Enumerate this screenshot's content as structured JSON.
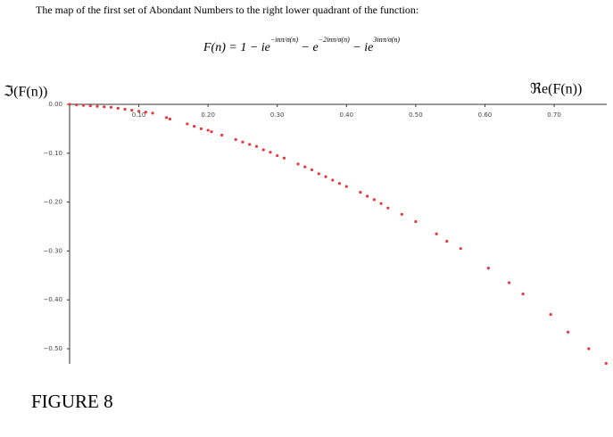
{
  "chart_data": {
    "type": "scatter",
    "title": "The map of the first set of Abondant Numbers to the right lower quadrant of the function:",
    "formula": {
      "lhs": "F(n) = 1 − ie",
      "exp1": "−inπ/σ(n)",
      "mid1": " − e",
      "exp2": "−2inπ/σ(n)",
      "mid2": " − ie",
      "exp3": "3inπ/σ(n)"
    },
    "y_label": "ℑ(F(n))",
    "x_label": "ℜe(F(n))",
    "caption": "FIGURE 8",
    "color": "#e8383d",
    "xlim": [
      0,
      0.776
    ],
    "ylim": [
      -0.531,
      0
    ],
    "xticks": [
      {
        "value": 0.1,
        "label": "0.10"
      },
      {
        "value": 0.2,
        "label": "0.20"
      },
      {
        "value": 0.3,
        "label": "0.30"
      },
      {
        "value": 0.4,
        "label": "0.40"
      },
      {
        "value": 0.5,
        "label": "0.50"
      },
      {
        "value": 0.6,
        "label": "0.60"
      },
      {
        "value": 0.7,
        "label": "0.70"
      }
    ],
    "yticks": [
      {
        "value": 0,
        "label": "0.00"
      },
      {
        "value": -0.1,
        "label": "−0.10"
      },
      {
        "value": -0.2,
        "label": "−0.20"
      },
      {
        "value": -0.3,
        "label": "−0.30"
      },
      {
        "value": -0.4,
        "label": "−0.40"
      },
      {
        "value": -0.5,
        "label": "−0.50"
      }
    ],
    "x": [
      0,
      0.01,
      0.02,
      0.03,
      0.04,
      0.05,
      0.06,
      0.07,
      0.08,
      0.09,
      0.1,
      0.11,
      0.12,
      0.14,
      0.145,
      0.17,
      0.18,
      0.19,
      0.2,
      0.205,
      0.22,
      0.24,
      0.25,
      0.26,
      0.27,
      0.28,
      0.29,
      0.3,
      0.31,
      0.33,
      0.34,
      0.35,
      0.36,
      0.37,
      0.38,
      0.39,
      0.4,
      0.42,
      0.43,
      0.44,
      0.45,
      0.46,
      0.48,
      0.5,
      0.53,
      0.545,
      0.565,
      0.605,
      0.635,
      0.655,
      0.695,
      0.72,
      0.75,
      0.775
    ],
    "values": [
      0,
      -0.001,
      -0.002,
      -0.003,
      -0.004,
      -0.005,
      -0.006,
      -0.008,
      -0.01,
      -0.012,
      -0.014,
      -0.016,
      -0.018,
      -0.027,
      -0.03,
      -0.04,
      -0.045,
      -0.05,
      -0.053,
      -0.056,
      -0.063,
      -0.072,
      -0.077,
      -0.082,
      -0.086,
      -0.093,
      -0.098,
      -0.105,
      -0.11,
      -0.122,
      -0.128,
      -0.134,
      -0.142,
      -0.148,
      -0.155,
      -0.162,
      -0.168,
      -0.18,
      -0.188,
      -0.195,
      -0.203,
      -0.212,
      -0.225,
      -0.24,
      -0.265,
      -0.28,
      -0.295,
      -0.335,
      -0.365,
      -0.388,
      -0.43,
      -0.466,
      -0.5,
      -0.53
    ]
  }
}
